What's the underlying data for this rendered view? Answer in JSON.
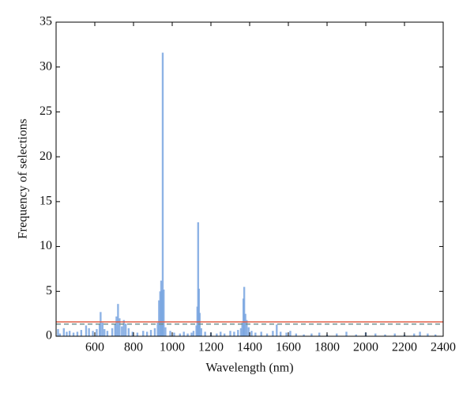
{
  "chart_data": {
    "type": "bar",
    "xlabel": "Wavelength (nm)",
    "ylabel": "Frequency of selections",
    "x": [
      410,
      420,
      440,
      455,
      470,
      490,
      510,
      530,
      555,
      570,
      590,
      610,
      625,
      630,
      640,
      650,
      665,
      690,
      705,
      712,
      720,
      728,
      740,
      750,
      760,
      775,
      795,
      820,
      850,
      870,
      890,
      910,
      925,
      932,
      938,
      943,
      947,
      951,
      956,
      965,
      990,
      1010,
      1040,
      1060,
      1080,
      1100,
      1110,
      1125,
      1130,
      1134,
      1138,
      1142,
      1150,
      1170,
      1200,
      1230,
      1250,
      1270,
      1300,
      1320,
      1340,
      1355,
      1362,
      1368,
      1372,
      1378,
      1385,
      1395,
      1410,
      1430,
      1460,
      1490,
      1520,
      1540,
      1560,
      1590,
      1610,
      1640,
      1680,
      1720,
      1760,
      1800,
      1850,
      1900,
      1950,
      2000,
      2050,
      2100,
      2150,
      2200,
      2250,
      2280,
      2320,
      2360
    ],
    "values": [
      0.8,
      0.3,
      0.9,
      0.5,
      0.6,
      0.4,
      0.5,
      0.7,
      1.2,
      0.9,
      0.6,
      0.8,
      1.3,
      2.7,
      1.5,
      0.8,
      0.6,
      0.9,
      1.4,
      2.2,
      3.6,
      2.0,
      1.1,
      1.8,
      1.4,
      0.9,
      0.5,
      0.4,
      0.6,
      0.5,
      0.7,
      0.9,
      1.5,
      4.0,
      5.0,
      6.2,
      5.1,
      31.6,
      5.2,
      1.0,
      0.6,
      0.4,
      0.3,
      0.5,
      0.3,
      0.4,
      0.6,
      1.2,
      3.3,
      12.7,
      5.3,
      2.6,
      0.9,
      0.5,
      0.4,
      0.3,
      0.5,
      0.3,
      0.6,
      0.5,
      0.7,
      0.9,
      1.5,
      4.2,
      5.5,
      2.5,
      1.8,
      1.0,
      0.6,
      0.4,
      0.5,
      0.3,
      0.6,
      1.3,
      0.5,
      0.4,
      0.6,
      0.3,
      0.2,
      0.3,
      0.4,
      0.2,
      0.3,
      0.5,
      0.2,
      0.4,
      0.3,
      0.2,
      0.3,
      0.2,
      0.3,
      0.5,
      0.3,
      0.2
    ],
    "color": "#7aa6e0",
    "xlim": [
      400,
      2400
    ],
    "xticks": [
      600,
      800,
      1000,
      1200,
      1400,
      1600,
      1800,
      2000,
      2200,
      2400
    ],
    "ylim": [
      0,
      35
    ],
    "yticks": [
      0,
      5,
      10,
      15,
      20,
      25,
      30,
      35
    ],
    "reference_lines": [
      {
        "value": 1.6,
        "color": "#e0604a",
        "style": "solid"
      },
      {
        "value": 1.35,
        "color": "#6f9090",
        "style": "dashed"
      }
    ]
  }
}
